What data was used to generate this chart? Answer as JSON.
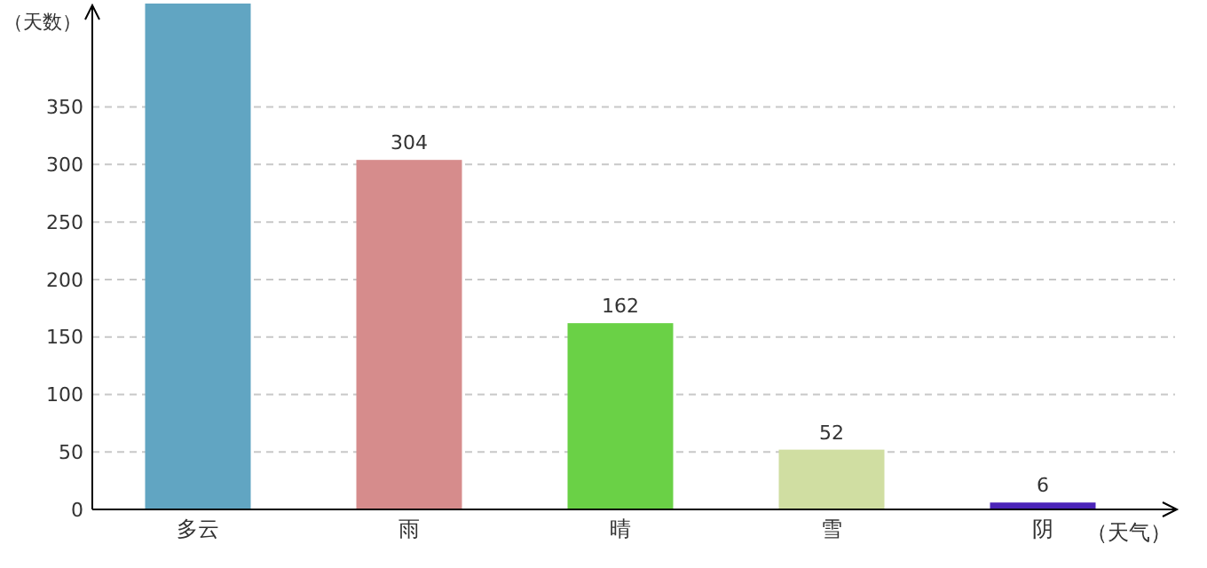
{
  "chart_data": {
    "type": "bar",
    "xlabel": "（天气）",
    "ylabel": "（天数）",
    "categories": [
      "多云",
      "雨",
      "晴",
      "雪",
      "阴"
    ],
    "values": [
      440,
      304,
      162,
      52,
      6
    ],
    "colors": [
      "#61a5c2",
      "#d68c8c",
      "#6ad146",
      "#d0dea2",
      "#4b24b8"
    ],
    "value_labels": [
      null,
      "304",
      "162",
      "52",
      "6"
    ],
    "ylim": [
      0,
      440
    ],
    "yticks": [
      0,
      50,
      100,
      150,
      200,
      250,
      300,
      350
    ],
    "grid": "y"
  }
}
